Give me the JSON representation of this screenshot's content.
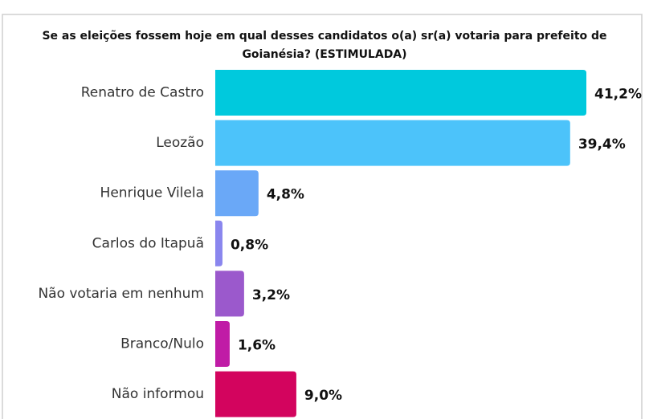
{
  "chart_data": {
    "type": "bar",
    "orientation": "horizontal",
    "title": [
      "Se as eleições fossem hoje em qual desses candidatos o(a) sr(a) votaria para prefeito de",
      "Goianésia? (ESTIMULADA)"
    ],
    "categories": [
      "Renatro de Castro",
      "Leozão",
      "Henrique Vilela",
      "Carlos do Itapuã",
      "Não votaria em nenhum",
      "Branco/Nulo",
      "Não informou"
    ],
    "values": [
      41.2,
      39.4,
      4.8,
      0.8,
      3.2,
      1.6,
      9.0
    ],
    "value_labels": [
      "41,2%",
      "39,4%",
      "4,8%",
      "0,8%",
      "3,2%",
      "1,6%",
      "9,0%"
    ],
    "colors": [
      "#00c9dd",
      "#4cc3fa",
      "#6aa8f7",
      "#8a86ee",
      "#9b59cc",
      "#c01ca6",
      "#d3045e"
    ]
  }
}
